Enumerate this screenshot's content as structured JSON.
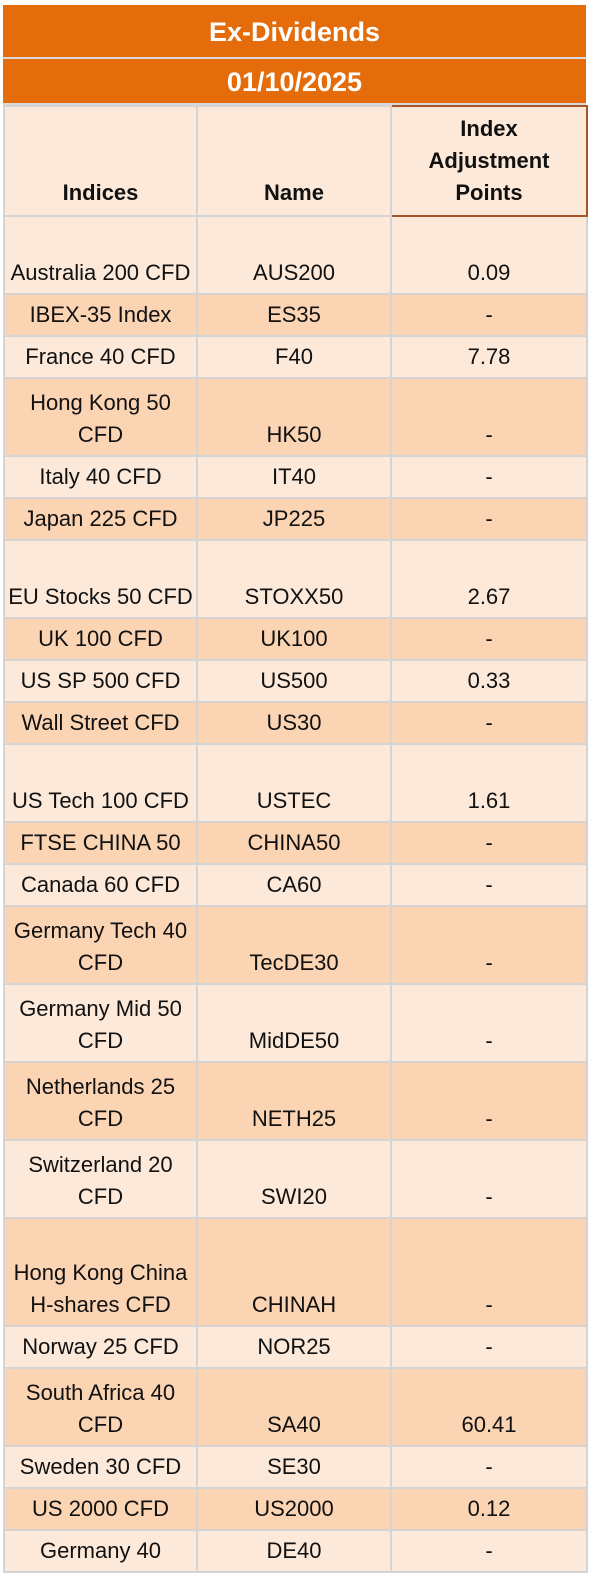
{
  "title": "Ex-Dividends",
  "date": "01/10/2025",
  "headers": {
    "indices": "Indices",
    "name": "Name",
    "adjustment": "Index Adjustment Points"
  },
  "rows": [
    {
      "index": "Australia 200 CFD",
      "name": "AUS200",
      "points": "0.09"
    },
    {
      "index": "IBEX-35 Index",
      "name": "ES35",
      "points": "-"
    },
    {
      "index": "France 40 CFD",
      "name": "F40",
      "points": "7.78"
    },
    {
      "index": "Hong Kong 50 CFD",
      "name": "HK50",
      "points": "-"
    },
    {
      "index": "Italy 40 CFD",
      "name": "IT40",
      "points": "-"
    },
    {
      "index": "Japan 225 CFD",
      "name": "JP225",
      "points": "-"
    },
    {
      "index": "EU Stocks 50 CFD",
      "name": "STOXX50",
      "points": "2.67"
    },
    {
      "index": "UK 100 CFD",
      "name": "UK100",
      "points": "-"
    },
    {
      "index": "US SP 500 CFD",
      "name": "US500",
      "points": "0.33"
    },
    {
      "index": "Wall Street CFD",
      "name": "US30",
      "points": "-"
    },
    {
      "index": "US Tech 100 CFD",
      "name": "USTEC",
      "points": "1.61"
    },
    {
      "index": "FTSE CHINA 50",
      "name": "CHINA50",
      "points": "-"
    },
    {
      "index": "Canada 60 CFD",
      "name": "CA60",
      "points": "-"
    },
    {
      "index": "Germany Tech 40 CFD",
      "name": "TecDE30",
      "points": "-"
    },
    {
      "index": "Germany Mid 50 CFD",
      "name": "MidDE50",
      "points": "-"
    },
    {
      "index": "Netherlands 25 CFD",
      "name": "NETH25",
      "points": "-"
    },
    {
      "index": "Switzerland 20 CFD",
      "name": "SWI20",
      "points": "-"
    },
    {
      "index": "Hong Kong China H-shares CFD",
      "name": "CHINAH",
      "points": "-"
    },
    {
      "index": "Norway 25 CFD",
      "name": "NOR25",
      "points": "-"
    },
    {
      "index": "South Africa 40 CFD",
      "name": "SA40",
      "points": "60.41"
    },
    {
      "index": "Sweden 30 CFD",
      "name": "SE30",
      "points": "-"
    },
    {
      "index": "US 2000 CFD",
      "name": "US2000",
      "points": "0.12"
    },
    {
      "index": "Germany 40",
      "name": "DE40",
      "points": "-"
    }
  ],
  "colors": {
    "banner": "#e46c0a",
    "row_light": "#fde9d9",
    "row_dark": "#fbd4b4",
    "grid": "#d4d4d4"
  }
}
